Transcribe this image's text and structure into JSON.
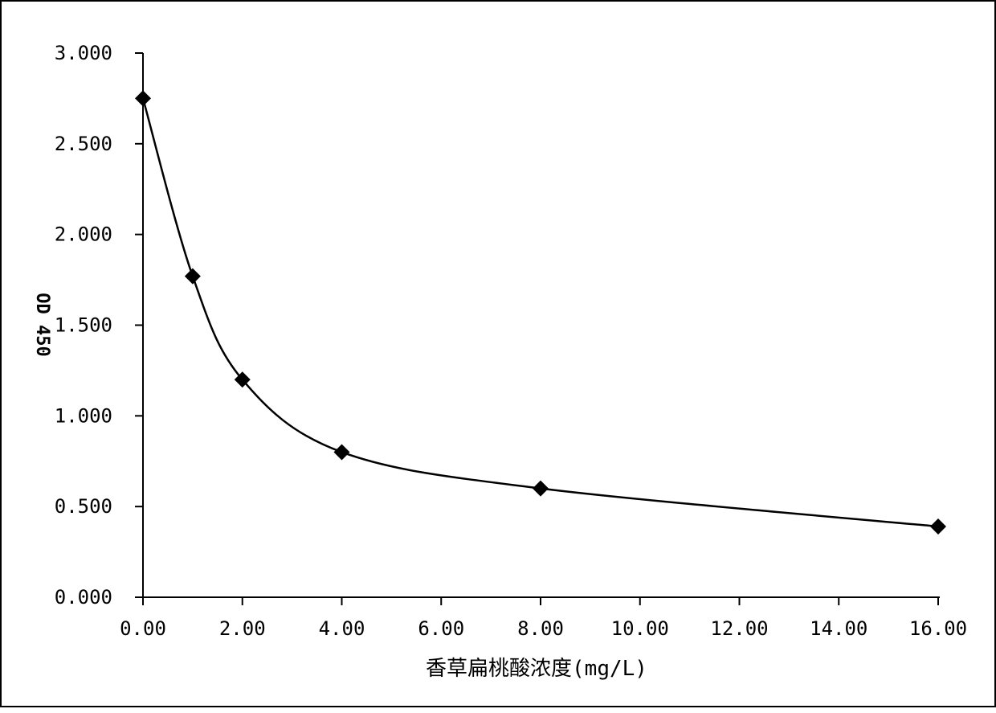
{
  "chart_data": {
    "type": "scatter",
    "title": "",
    "xlabel": "香草扁桃酸浓度(mg/L)",
    "ylabel": "OD 450",
    "xlim": [
      0,
      16
    ],
    "ylim": [
      0,
      3
    ],
    "x_ticks": [
      "0.00",
      "2.00",
      "4.00",
      "6.00",
      "8.00",
      "10.00",
      "12.00",
      "14.00",
      "16.00"
    ],
    "y_ticks": [
      "0.000",
      "0.500",
      "1.000",
      "1.500",
      "2.000",
      "2.500",
      "3.000"
    ],
    "x_tick_values": [
      0,
      2,
      4,
      6,
      8,
      10,
      12,
      14,
      16
    ],
    "y_tick_values": [
      0,
      0.5,
      1.0,
      1.5,
      2.0,
      2.5,
      3.0
    ],
    "grid": false,
    "legend": "none",
    "marker": "diamond",
    "series": [
      {
        "x": [
          0,
          1,
          2,
          4,
          8,
          16
        ],
        "y": [
          2.75,
          1.77,
          1.2,
          0.8,
          0.6,
          0.39
        ],
        "color": "#000000",
        "smooth": true
      }
    ]
  }
}
